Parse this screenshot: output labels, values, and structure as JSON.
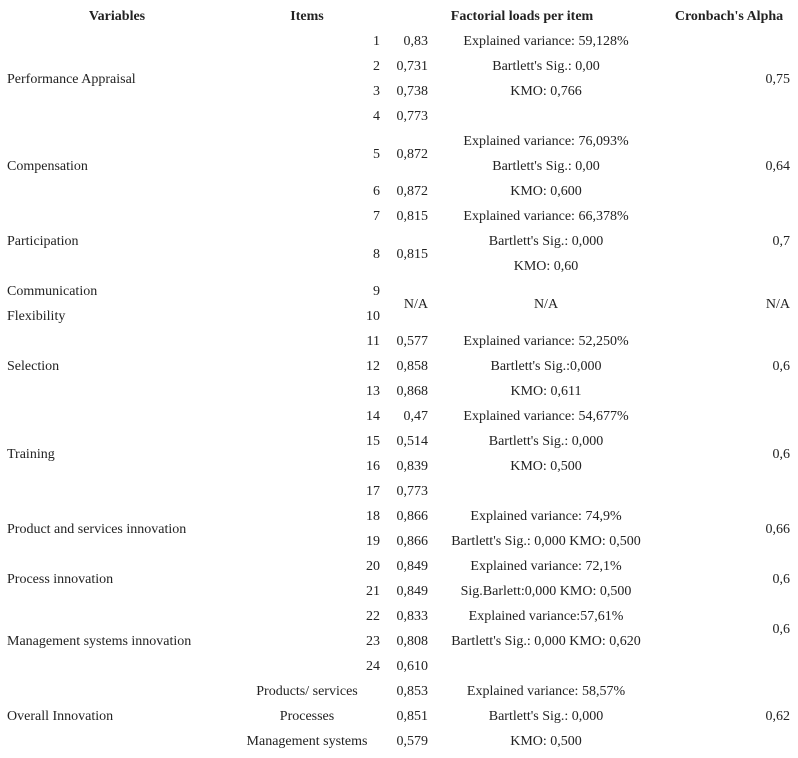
{
  "header": {
    "variables": "Variables",
    "items": "Items",
    "loads": "Factorial loads per item",
    "alpha": "Cronbach's Alpha"
  },
  "groups": [
    {
      "variables": [
        "Performance Appraisal"
      ],
      "items": [
        1,
        2,
        3,
        4
      ],
      "loads": [
        "0,83",
        "0,731",
        "0,738",
        "0,773"
      ],
      "stats": [
        "Explained variance: 59,128%",
        "Bartlett's Sig.: 0,00",
        "KMO: 0,766"
      ],
      "alpha": "0,75"
    },
    {
      "variables": [
        "Compensation"
      ],
      "items": [
        5,
        6
      ],
      "loads": [
        "0,872",
        "0,872"
      ],
      "stats": [
        "Explained variance: 76,093%",
        "Bartlett's Sig.: 0,00",
        "KMO: 0,600"
      ],
      "alpha": "0,64"
    },
    {
      "variables": [
        "Participation"
      ],
      "items": [
        7,
        8
      ],
      "loads": [
        "0,815",
        "0,815"
      ],
      "stats": [
        "Explained variance: 66,378%",
        "Bartlett's Sig.: 0,000",
        "KMO: 0,60"
      ],
      "alpha": "0,7"
    },
    {
      "variables": [
        "Communication",
        "Flexibility"
      ],
      "items": [
        9,
        10
      ],
      "loads": [
        "N/A"
      ],
      "stats": [
        "N/A"
      ],
      "alpha": "N/A"
    },
    {
      "variables": [
        "Selection"
      ],
      "items": [
        11,
        12,
        13
      ],
      "loads": [
        "0,577",
        "0,858",
        "0,868"
      ],
      "stats": [
        "Explained variance: 52,250%",
        "Bartlett's Sig.:0,000",
        "KMO: 0,611"
      ],
      "alpha": "0,6"
    },
    {
      "variables": [
        "Training"
      ],
      "items": [
        14,
        15,
        16,
        17
      ],
      "loads": [
        "0,47",
        "0,514",
        "0,839",
        "0,773"
      ],
      "stats": [
        "Explained variance: 54,677%",
        "Bartlett's Sig.: 0,000",
        "KMO: 0,500"
      ],
      "alpha": "0,6"
    },
    {
      "variables": [
        "Product and services innovation"
      ],
      "items": [
        18,
        19
      ],
      "loads": [
        "0,866",
        "0,866"
      ],
      "stats": [
        "Explained variance: 74,9%",
        "Bartlett's Sig.: 0,000 KMO: 0,500"
      ],
      "alpha": "0,66"
    },
    {
      "variables": [
        "Process innovation"
      ],
      "items": [
        20,
        21
      ],
      "loads": [
        "0,849",
        "0,849"
      ],
      "stats": [
        "Explained variance: 72,1%",
        "Sig.Barlett:0,000 KMO: 0,500"
      ],
      "alpha": "0,6"
    },
    {
      "variables": [
        "Management systems innovation"
      ],
      "items": [
        22,
        23,
        24
      ],
      "loads": [
        "0,833",
        "0,808",
        "0,610"
      ],
      "stats": [
        "Explained variance:57,61%",
        "Bartlett's Sig.: 0,000 KMO: 0,620"
      ],
      "alpha": "0,6"
    },
    {
      "variables": [
        "Overall Innovation"
      ],
      "items": [
        "Products/ services",
        "Processes",
        "Management systems"
      ],
      "loads": [
        "0,853",
        "0,851",
        "0,579"
      ],
      "stats": [
        "Explained variance: 58,57%",
        "Bartlett's Sig.: 0,000",
        "KMO: 0,500"
      ],
      "alpha": "0,62"
    }
  ]
}
